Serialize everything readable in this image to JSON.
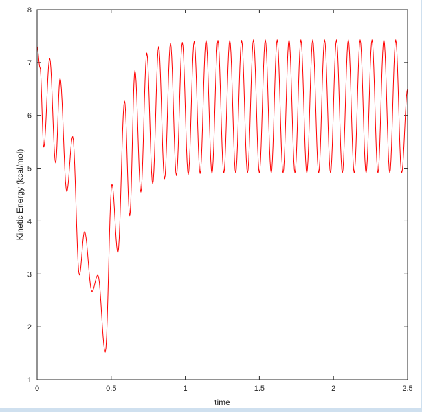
{
  "chart_data": {
    "type": "line",
    "title": "",
    "xlabel": "time",
    "ylabel": "Kinetic Energy (kcal/mol)",
    "xlim": [
      0,
      2.5
    ],
    "ylim": [
      1,
      8
    ],
    "xticks": [
      0,
      0.5,
      1,
      1.5,
      2,
      2.5
    ],
    "xtick_labels": [
      "0",
      "0.5",
      "1",
      "1.5",
      "2",
      "2.5"
    ],
    "yticks": [
      1,
      2,
      3,
      4,
      5,
      6,
      7,
      8
    ],
    "ytick_labels": [
      "1",
      "2",
      "3",
      "4",
      "5",
      "6",
      "7",
      "8"
    ],
    "grid": false,
    "legend": "none",
    "series_color": "#ff0000",
    "series": [
      {
        "description": "oscillating trace; extrema (time, value)",
        "x": [
          0,
          0.02,
          0.045,
          0.085,
          0.125,
          0.155,
          0.2,
          0.24,
          0.285,
          0.32,
          0.37,
          0.41,
          0.46,
          0.505,
          0.545,
          0.59,
          0.625,
          0.66,
          0.7,
          0.74,
          0.78,
          0.82,
          0.86,
          0.9,
          0.94,
          0.98,
          1.02,
          1.06,
          1.1,
          1.14,
          1.18,
          1.22,
          1.26,
          1.3,
          1.34,
          1.38,
          1.42,
          1.46,
          1.5,
          1.54,
          1.58,
          1.62,
          1.66,
          1.7,
          1.74,
          1.78,
          1.82,
          1.86,
          1.9,
          1.94,
          1.98,
          2.02,
          2.06,
          2.1,
          2.14,
          2.18,
          2.22,
          2.26,
          2.3,
          2.34,
          2.38,
          2.42,
          2.46,
          2.5
        ],
        "y": [
          7.3,
          6.9,
          5.4,
          7.08,
          5.1,
          6.7,
          4.56,
          5.6,
          2.98,
          3.8,
          2.67,
          2.98,
          1.52,
          4.7,
          3.4,
          6.27,
          4.1,
          6.85,
          4.55,
          7.18,
          4.7,
          7.3,
          4.8,
          7.36,
          4.86,
          7.38,
          4.88,
          7.4,
          4.9,
          7.42,
          4.9,
          7.42,
          4.91,
          7.42,
          4.91,
          7.42,
          4.91,
          7.43,
          4.91,
          7.43,
          4.91,
          7.43,
          4.91,
          7.43,
          4.91,
          7.43,
          4.91,
          7.43,
          4.91,
          7.43,
          4.91,
          7.43,
          4.91,
          7.43,
          4.91,
          7.43,
          4.91,
          7.43,
          4.91,
          7.43,
          4.91,
          7.43,
          4.91,
          6.5
        ]
      }
    ]
  }
}
